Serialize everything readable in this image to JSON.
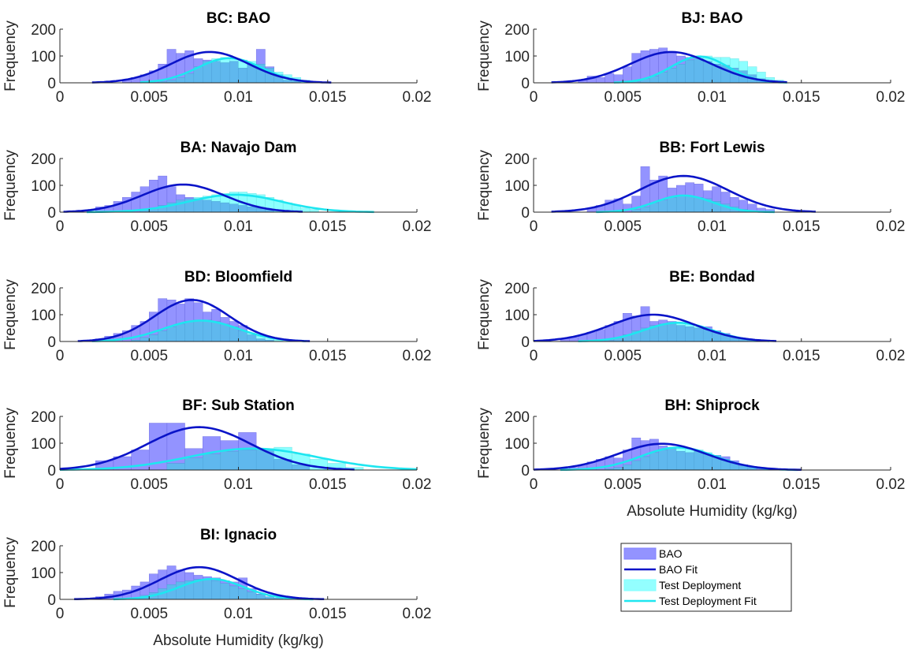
{
  "figure": {
    "background": "#ffffff",
    "colors": {
      "bao_bar": "#8080ff",
      "bao_bar_edge": "#6a6ae0",
      "test_bar": "#80ffff",
      "overlap_bar": "#5fb8ee",
      "bao_fit": "#0a14c8",
      "test_fit": "#1ee6f0"
    }
  },
  "chart_data": [
    {
      "type": "bar",
      "title": "BC: BAO",
      "ylabel": "Frequency",
      "xlabel": "",
      "xlim": [
        0,
        0.02
      ],
      "ylim": [
        0,
        200
      ],
      "x_ticks": [
        "0",
        "0.005",
        "0.01",
        "0.015",
        "0.02"
      ],
      "y_ticks": [
        "0",
        "100",
        "200"
      ],
      "bin_width": 0.0005,
      "bao_bins": {
        "start": 0.0035,
        "counts": [
          10,
          20,
          30,
          45,
          70,
          125,
          110,
          120,
          90,
          85,
          80,
          75,
          80,
          55,
          70,
          125,
          60,
          30,
          10,
          5
        ]
      },
      "test_bins": {
        "start": 0.0055,
        "counts": [
          5,
          10,
          20,
          35,
          60,
          80,
          90,
          95,
          90,
          85,
          80,
          70,
          55,
          40,
          30,
          20,
          10,
          5
        ]
      },
      "bao_fit": {
        "mean": 0.0084,
        "sd": 0.0022,
        "peak": 115,
        "xrange": [
          0.0018,
          0.0152
        ]
      },
      "test_fit": {
        "mean": 0.0095,
        "sd": 0.0018,
        "peak": 92,
        "xrange": [
          0.0045,
          0.0142
        ]
      },
      "legend": false
    },
    {
      "type": "bar",
      "title": "BJ: BAO",
      "ylabel": "Frequency",
      "xlabel": "",
      "xlim": [
        0,
        0.02
      ],
      "ylim": [
        0,
        200
      ],
      "x_ticks": [
        "0",
        "0.005",
        "0.01",
        "0.015",
        "0.02"
      ],
      "y_ticks": [
        "0",
        "100",
        "200"
      ],
      "bin_width": 0.0005,
      "bao_bins": {
        "start": 0.0025,
        "counts": [
          10,
          25,
          20,
          35,
          30,
          60,
          110,
          120,
          125,
          130,
          115,
          100,
          95,
          90,
          80,
          70,
          65,
          55,
          45,
          30,
          15,
          5
        ]
      },
      "test_bins": {
        "start": 0.0055,
        "counts": [
          5,
          15,
          25,
          40,
          55,
          70,
          85,
          95,
          100,
          95,
          95,
          90,
          80,
          60,
          40,
          20,
          10
        ]
      },
      "bao_fit": {
        "mean": 0.0077,
        "sd": 0.0023,
        "peak": 115,
        "xrange": [
          0.001,
          0.0142
        ]
      },
      "test_fit": {
        "mean": 0.0093,
        "sd": 0.0016,
        "peak": 98,
        "xrange": [
          0.0045,
          0.0142
        ]
      },
      "legend": false
    },
    {
      "type": "bar",
      "title": "BA: Navajo Dam",
      "ylabel": "Frequency",
      "xlabel": "",
      "xlim": [
        0,
        0.02
      ],
      "ylim": [
        0,
        200
      ],
      "x_ticks": [
        "0",
        "0.005",
        "0.01",
        "0.015",
        "0.02"
      ],
      "y_ticks": [
        "0",
        "100",
        "200"
      ],
      "bin_width": 0.0005,
      "bao_bins": {
        "start": 0.002,
        "counts": [
          20,
          25,
          40,
          55,
          75,
          95,
          120,
          135,
          95,
          65,
          55,
          50,
          45,
          40,
          35,
          30,
          25,
          20,
          15,
          10
        ]
      },
      "test_bins": {
        "start": 0.0045,
        "counts": [
          10,
          15,
          25,
          35,
          45,
          50,
          55,
          60,
          65,
          70,
          75,
          75,
          70,
          65,
          55,
          45,
          35,
          25,
          15,
          10
        ]
      },
      "bao_fit": {
        "mean": 0.0069,
        "sd": 0.0023,
        "peak": 103,
        "xrange": [
          0.0002,
          0.0136
        ]
      },
      "test_fit": {
        "mean": 0.0098,
        "sd": 0.0026,
        "peak": 65,
        "xrange": [
          0.0015,
          0.0176
        ]
      },
      "legend": false
    },
    {
      "type": "bar",
      "title": "BB: Fort Lewis",
      "ylabel": "Frequency",
      "xlabel": "",
      "xlim": [
        0,
        0.02
      ],
      "ylim": [
        0,
        200
      ],
      "x_ticks": [
        "0",
        "0.005",
        "0.01",
        "0.015",
        "0.02"
      ],
      "y_ticks": [
        "0",
        "100",
        "200"
      ],
      "bin_width": 0.0005,
      "bao_bins": {
        "start": 0.003,
        "counts": [
          15,
          25,
          45,
          50,
          30,
          60,
          170,
          120,
          135,
          90,
          100,
          110,
          105,
          80,
          95,
          75,
          55,
          45,
          30,
          15,
          10
        ]
      },
      "test_bins": {
        "start": 0.0055,
        "counts": [
          10,
          20,
          35,
          45,
          55,
          60,
          60,
          55,
          50,
          40,
          30,
          20,
          10
        ]
      },
      "bao_fit": {
        "mean": 0.0084,
        "sd": 0.0025,
        "peak": 135,
        "xrange": [
          0.001,
          0.0158
        ]
      },
      "test_fit": {
        "mean": 0.0084,
        "sd": 0.0016,
        "peak": 62,
        "xrange": [
          0.0035,
          0.0135
        ]
      },
      "legend": false
    },
    {
      "type": "bar",
      "title": "BD: Bloomfield",
      "ylabel": "Frequency",
      "xlabel": "",
      "xlim": [
        0,
        0.02
      ],
      "ylim": [
        0,
        200
      ],
      "x_ticks": [
        "0",
        "0.005",
        "0.01",
        "0.015",
        "0.02"
      ],
      "y_ticks": [
        "0",
        "100",
        "200"
      ],
      "bin_width": 0.0005,
      "bao_bins": {
        "start": 0.002,
        "counts": [
          10,
          20,
          30,
          40,
          60,
          75,
          110,
          160,
          155,
          140,
          160,
          145,
          110,
          120,
          90,
          75,
          60,
          25,
          10,
          5
        ]
      },
      "test_bins": {
        "start": 0.004,
        "counts": [
          5,
          15,
          25,
          40,
          55,
          65,
          75,
          80,
          80,
          75,
          65,
          55,
          40,
          30,
          20,
          10,
          5
        ]
      },
      "bao_fit": {
        "mean": 0.0074,
        "sd": 0.0021,
        "peak": 155,
        "xrange": [
          0.001,
          0.014
        ]
      },
      "test_fit": {
        "mean": 0.0079,
        "sd": 0.0021,
        "peak": 78,
        "xrange": [
          0.0018,
          0.0138
        ]
      },
      "legend": false
    },
    {
      "type": "bar",
      "title": "BE: Bondad",
      "ylabel": "Frequency",
      "xlabel": "",
      "xlim": [
        0,
        0.02
      ],
      "ylim": [
        0,
        200
      ],
      "x_ticks": [
        "0",
        "0.005",
        "0.01",
        "0.015",
        "0.02"
      ],
      "y_ticks": [
        "0",
        "100",
        "200"
      ],
      "bin_width": 0.0005,
      "bao_bins": {
        "start": 0.0015,
        "counts": [
          10,
          15,
          25,
          35,
          45,
          60,
          75,
          105,
          95,
          130,
          75,
          80,
          75,
          60,
          55,
          50,
          55,
          40,
          30,
          15,
          10,
          5
        ]
      },
      "test_bins": {
        "start": 0.004,
        "counts": [
          5,
          15,
          25,
          40,
          50,
          60,
          65,
          70,
          70,
          65,
          55,
          45,
          35,
          25,
          15,
          10,
          5
        ]
      },
      "bao_fit": {
        "mean": 0.0067,
        "sd": 0.0024,
        "peak": 100,
        "xrange": [
          0.0,
          0.0136
        ]
      },
      "test_fit": {
        "mean": 0.0081,
        "sd": 0.0019,
        "peak": 70,
        "xrange": [
          0.0025,
          0.0132
        ]
      },
      "legend": false
    },
    {
      "type": "bar",
      "title": "BF: Sub Station",
      "ylabel": "Frequency",
      "xlabel": "",
      "xlim": [
        0,
        0.02
      ],
      "ylim": [
        0,
        200
      ],
      "x_ticks": [
        "0",
        "0.005",
        "0.01",
        "0.015",
        "0.02"
      ],
      "y_ticks": [
        "0",
        "100",
        "200"
      ],
      "bin_width": 0.001,
      "bao_bins": {
        "start": 0.002,
        "counts": [
          35,
          50,
          75,
          175,
          175,
          80,
          125,
          110,
          140,
          75,
          40,
          20
        ]
      },
      "test_bins": {
        "start": 0.006,
        "counts": [
          25,
          45,
          60,
          70,
          75,
          80,
          85,
          60,
          40,
          25,
          10
        ]
      },
      "bao_fit": {
        "mean": 0.0078,
        "sd": 0.0029,
        "peak": 160,
        "xrange": [
          0.0,
          0.0165
        ]
      },
      "test_fit": {
        "mean": 0.0108,
        "sd": 0.0036,
        "peak": 80,
        "xrange": [
          0.0,
          0.02
        ]
      },
      "legend": false
    },
    {
      "type": "bar",
      "title": "BH: Shiprock",
      "ylabel": "Frequency",
      "xlabel": "Absolute Humidity (kg/kg)",
      "xlim": [
        0,
        0.02
      ],
      "ylim": [
        0,
        200
      ],
      "x_ticks": [
        "0",
        "0.005",
        "0.01",
        "0.015",
        "0.02"
      ],
      "y_ticks": [
        "0",
        "100",
        "200"
      ],
      "bin_width": 0.0005,
      "bao_bins": {
        "start": 0.0015,
        "counts": [
          5,
          10,
          20,
          30,
          40,
          50,
          45,
          75,
          120,
          110,
          115,
          90,
          85,
          70,
          65,
          70,
          60,
          55,
          50,
          35,
          20,
          10,
          5
        ]
      },
      "test_bins": {
        "start": 0.004,
        "counts": [
          5,
          10,
          20,
          35,
          50,
          65,
          75,
          80,
          85,
          80,
          75,
          65,
          55,
          40,
          25,
          15,
          8
        ]
      },
      "bao_fit": {
        "mean": 0.0072,
        "sd": 0.0025,
        "peak": 98,
        "xrange": [
          0.0,
          0.015
        ]
      },
      "test_fit": {
        "mean": 0.0081,
        "sd": 0.0021,
        "peak": 84,
        "xrange": [
          0.0015,
          0.0148
        ]
      },
      "legend": false
    },
    {
      "type": "bar",
      "title": "BI: Ignacio",
      "ylabel": "Frequency",
      "xlabel": "Absolute Humidity (kg/kg)",
      "xlim": [
        0,
        0.02
      ],
      "ylim": [
        0,
        200
      ],
      "x_ticks": [
        "0",
        "0.005",
        "0.01",
        "0.015",
        "0.02"
      ],
      "y_ticks": [
        "0",
        "100",
        "200"
      ],
      "bin_width": 0.0005,
      "bao_bins": {
        "start": 0.002,
        "counts": [
          10,
          20,
          30,
          35,
          50,
          65,
          95,
          110,
          125,
          110,
          100,
          90,
          85,
          80,
          70,
          65,
          80,
          40,
          20,
          10,
          5
        ]
      },
      "test_bins": {
        "start": 0.004,
        "counts": [
          5,
          15,
          25,
          40,
          55,
          65,
          70,
          75,
          75,
          70,
          60,
          50,
          40,
          28,
          18,
          10,
          5
        ]
      },
      "bao_fit": {
        "mean": 0.0078,
        "sd": 0.0022,
        "peak": 120,
        "xrange": [
          0.0008,
          0.0148
        ]
      },
      "test_fit": {
        "mean": 0.0085,
        "sd": 0.0018,
        "peak": 76,
        "xrange": [
          0.003,
          0.0142
        ]
      },
      "legend": false
    }
  ],
  "legend": {
    "entries": [
      {
        "label": "BAO",
        "kind": "patch",
        "color": "#8080ff"
      },
      {
        "label": "BAO Fit",
        "kind": "line",
        "color": "#0a14c8"
      },
      {
        "label": "Test Deployment",
        "kind": "patch",
        "color": "#80ffff"
      },
      {
        "label": "Test Deployment Fit",
        "kind": "line",
        "color": "#1ee6f0"
      }
    ]
  }
}
